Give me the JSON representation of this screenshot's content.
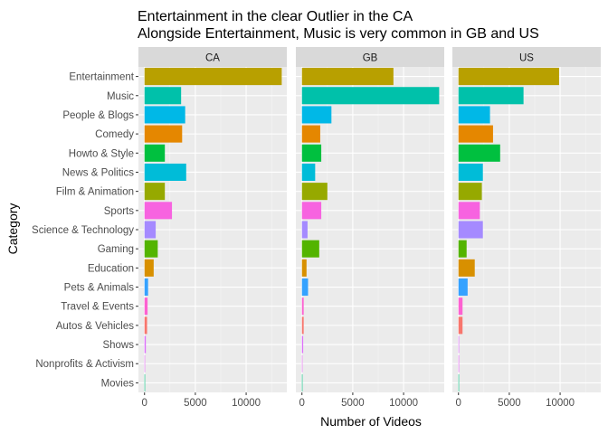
{
  "chart_data": {
    "type": "bar",
    "orientation": "horizontal",
    "title": "Entertainment in the clear Outlier in the CA",
    "subtitle": "Alongside Entertainment, Music is very common in GB and US",
    "xlabel": "Number of Videos",
    "ylabel": "Category",
    "xlim": [
      -600,
      14000
    ],
    "x_ticks": [
      0,
      5000,
      10000
    ],
    "x_tick_labels": [
      "0",
      "5000",
      "10000"
    ],
    "grid": true,
    "legend": "none",
    "categories": [
      "Entertainment",
      "Music",
      "People & Blogs",
      "Comedy",
      "Howto & Style",
      "News & Politics",
      "Film & Animation",
      "Sports",
      "Science & Technology",
      "Gaming",
      "Education",
      "Pets & Animals",
      "Travel & Events",
      "Autos & Vehicles",
      "Shows",
      "Nonprofits & Activism",
      "Movies"
    ],
    "colors": [
      "#B8A000",
      "#00C1AA",
      "#00B8E7",
      "#E58700",
      "#00C03F",
      "#00BCD8",
      "#96A900",
      "#F763E0",
      "#A58AFF",
      "#53B400",
      "#D89000",
      "#35A2FF",
      "#FD61D1",
      "#F8766D",
      "#DC71FA",
      "#E76BF3",
      "#00BF7D"
    ],
    "panels": [
      {
        "label": "CA",
        "values": [
          13500,
          3600,
          4000,
          3700,
          2000,
          4100,
          2000,
          2700,
          1100,
          1300,
          900,
          350,
          300,
          250,
          130,
          15,
          5
        ]
      },
      {
        "label": "GB",
        "values": [
          9000,
          13500,
          2900,
          1800,
          1900,
          1300,
          2500,
          1900,
          550,
          1700,
          450,
          600,
          170,
          170,
          120,
          10,
          5
        ]
      },
      {
        "label": "US",
        "values": [
          9900,
          6400,
          3100,
          3400,
          4100,
          2400,
          2300,
          2100,
          2400,
          800,
          1600,
          900,
          400,
          400,
          60,
          60,
          5
        ]
      }
    ]
  }
}
